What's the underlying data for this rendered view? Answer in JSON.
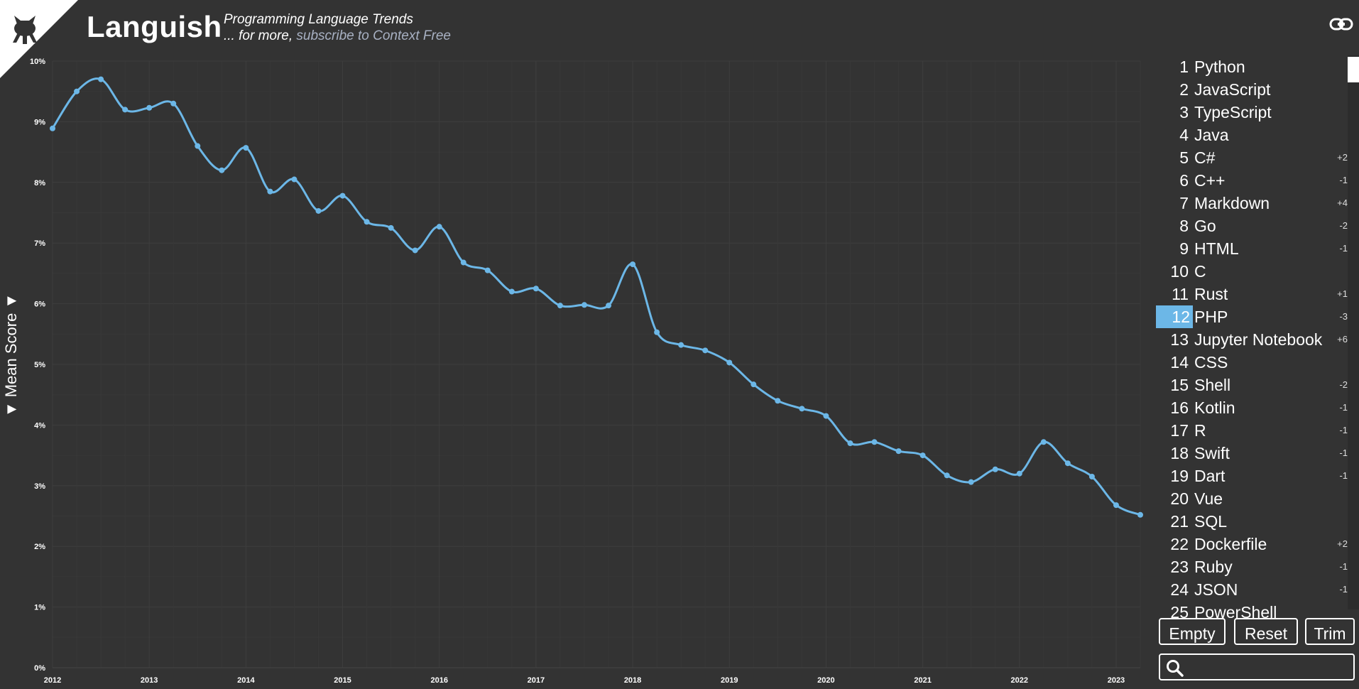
{
  "header": {
    "app_title": "Languish",
    "subtitle": "Programming Language Trends",
    "more_prefix": "... for more,",
    "subscribe_link": "subscribe to Context Free"
  },
  "icons": {
    "corner": "github-octocat-icon",
    "share": "link-icon",
    "search": "search-icon"
  },
  "colors": {
    "background": "#333333",
    "series": "#6cb7e7",
    "grid": "#3c3c3c",
    "selected_rank": "#6cb7e7"
  },
  "chart_data": {
    "type": "line",
    "ylabel": "▼ Mean Score ▼",
    "ylim": [
      0,
      10
    ],
    "xlim": [
      2012.0,
      2023.25
    ],
    "yticks": [
      "0%",
      "1%",
      "2%",
      "3%",
      "4%",
      "5%",
      "6%",
      "7%",
      "8%",
      "9%",
      "10%"
    ],
    "xticks": [
      "2012",
      "2013",
      "2014",
      "2015",
      "2016",
      "2017",
      "2018",
      "2019",
      "2020",
      "2021",
      "2022",
      "2023"
    ],
    "grid": true,
    "series": [
      {
        "x": [
          2012.0,
          2012.25,
          2012.5,
          2012.75,
          2013.0,
          2013.25,
          2013.5,
          2013.75,
          2014.0,
          2014.25,
          2014.5,
          2014.75,
          2015.0,
          2015.25,
          2015.5,
          2015.75,
          2016.0,
          2016.25,
          2016.5,
          2016.75,
          2017.0,
          2017.25,
          2017.5,
          2017.75,
          2018.0,
          2018.25,
          2018.5,
          2018.75,
          2019.0,
          2019.25,
          2019.5,
          2019.75,
          2020.0,
          2020.25,
          2020.5,
          2020.75,
          2021.0,
          2021.25,
          2021.5,
          2021.75,
          2022.0,
          2022.25,
          2022.5,
          2022.75,
          2023.0,
          2023.25
        ],
        "values": [
          8.89,
          9.5,
          9.7,
          9.2,
          9.23,
          9.3,
          8.6,
          8.2,
          8.57,
          7.85,
          8.05,
          7.53,
          7.78,
          7.35,
          7.25,
          6.88,
          7.27,
          6.68,
          6.55,
          6.2,
          6.25,
          5.97,
          5.98,
          5.97,
          6.65,
          5.53,
          5.32,
          5.23,
          5.03,
          4.67,
          4.4,
          4.27,
          4.15,
          3.7,
          3.72,
          3.57,
          3.5,
          3.17,
          3.06,
          3.27,
          3.2,
          3.72,
          3.37,
          3.15,
          2.68,
          2.52
        ]
      }
    ]
  },
  "ranking": [
    {
      "rank": "1",
      "name": "Python",
      "delta": ""
    },
    {
      "rank": "2",
      "name": "JavaScript",
      "delta": ""
    },
    {
      "rank": "3",
      "name": "TypeScript",
      "delta": ""
    },
    {
      "rank": "4",
      "name": "Java",
      "delta": ""
    },
    {
      "rank": "5",
      "name": "C#",
      "delta": "+2"
    },
    {
      "rank": "6",
      "name": "C++",
      "delta": "-1"
    },
    {
      "rank": "7",
      "name": "Markdown",
      "delta": "+4"
    },
    {
      "rank": "8",
      "name": "Go",
      "delta": "-2"
    },
    {
      "rank": "9",
      "name": "HTML",
      "delta": "-1"
    },
    {
      "rank": "10",
      "name": "C",
      "delta": ""
    },
    {
      "rank": "11",
      "name": "Rust",
      "delta": "+1"
    },
    {
      "rank": "12",
      "name": "PHP",
      "delta": "-3",
      "selected": true
    },
    {
      "rank": "13",
      "name": "Jupyter Notebook",
      "delta": "+6"
    },
    {
      "rank": "14",
      "name": "CSS",
      "delta": ""
    },
    {
      "rank": "15",
      "name": "Shell",
      "delta": "-2"
    },
    {
      "rank": "16",
      "name": "Kotlin",
      "delta": "-1"
    },
    {
      "rank": "17",
      "name": "R",
      "delta": "-1"
    },
    {
      "rank": "18",
      "name": "Swift",
      "delta": "-1"
    },
    {
      "rank": "19",
      "name": "Dart",
      "delta": "-1"
    },
    {
      "rank": "20",
      "name": "Vue",
      "delta": ""
    },
    {
      "rank": "21",
      "name": "SQL",
      "delta": ""
    },
    {
      "rank": "22",
      "name": "Dockerfile",
      "delta": "+2"
    },
    {
      "rank": "23",
      "name": "Ruby",
      "delta": "-1"
    },
    {
      "rank": "24",
      "name": "JSON",
      "delta": "-1"
    },
    {
      "rank": "25",
      "name": "PowerShell",
      "delta": ""
    }
  ],
  "buttons": {
    "empty": "Empty",
    "reset": "Reset",
    "trim": "Trim"
  },
  "search": {
    "placeholder": ""
  }
}
